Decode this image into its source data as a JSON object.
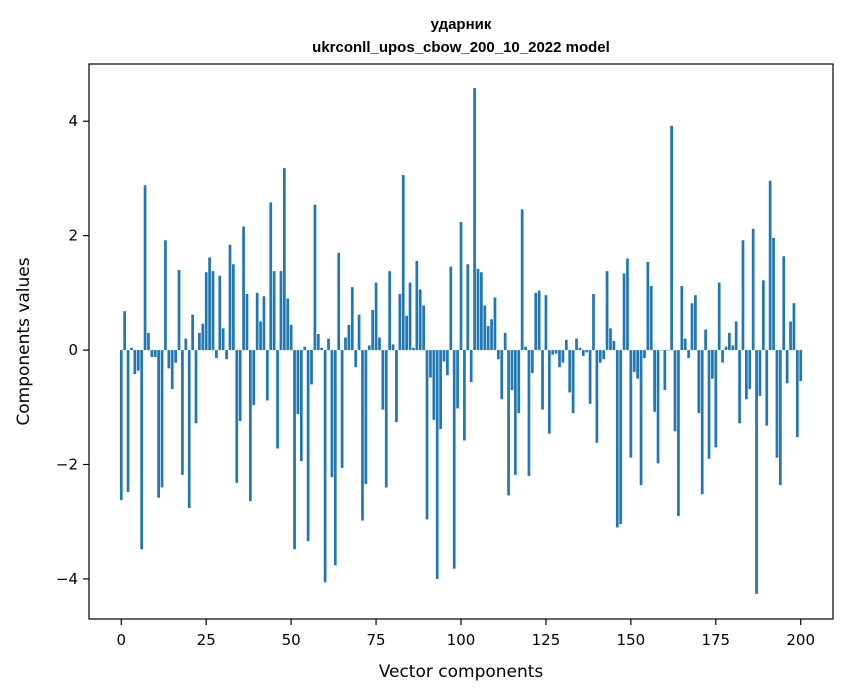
{
  "chart_data": {
    "type": "bar",
    "title": [
      "ударник",
      "ukrconll_upos_cbow_200_10_2022 model"
    ],
    "xlabel": "Vector components",
    "ylabel": "Components values",
    "xlim": [
      -9.5,
      209.5
    ],
    "ylim": [
      -4.7,
      5.0
    ],
    "xticks": [
      0,
      25,
      50,
      75,
      100,
      125,
      150,
      175,
      200
    ],
    "yticks": [
      -4,
      -2,
      0,
      2,
      4
    ],
    "grid": false,
    "color": "#1f77b4",
    "x_start": 0,
    "values": [
      -2.62,
      0.68,
      -2.48,
      0.04,
      -0.42,
      -0.36,
      -3.48,
      2.88,
      0.3,
      -0.12,
      -0.12,
      -2.58,
      -2.4,
      1.92,
      -0.32,
      -0.68,
      -0.22,
      1.4,
      -2.18,
      0.2,
      -2.76,
      0.62,
      -1.28,
      0.3,
      0.46,
      1.36,
      1.62,
      1.38,
      -0.14,
      1.3,
      0.38,
      -0.16,
      1.84,
      1.5,
      -2.32,
      -1.24,
      2.16,
      0.98,
      -2.64,
      -0.96,
      1.0,
      0.5,
      0.94,
      -0.88,
      2.58,
      1.38,
      -1.72,
      1.38,
      3.18,
      0.9,
      0.44,
      -3.48,
      -1.12,
      -1.94,
      0.06,
      -3.34,
      -0.6,
      2.54,
      0.28,
      0.04,
      -4.06,
      0.2,
      -2.22,
      -3.76,
      1.7,
      -2.06,
      0.22,
      0.44,
      1.1,
      -0.3,
      0.62,
      -2.98,
      -2.34,
      0.08,
      0.7,
      1.18,
      0.22,
      -1.04,
      -2.4,
      1.38,
      0.1,
      -1.26,
      0.98,
      3.06,
      0.6,
      1.18,
      0.04,
      1.56,
      1.06,
      0.78,
      -2.96,
      -0.48,
      -1.22,
      -4.0,
      -1.38,
      -0.2,
      -0.44,
      1.46,
      -3.82,
      -1.02,
      2.24,
      -1.58,
      1.5,
      -0.56,
      4.58,
      1.42,
      1.36,
      0.78,
      0.42,
      0.54,
      0.92,
      -0.16,
      -0.86,
      0.3,
      -2.54,
      -0.7,
      -2.18,
      -1.1,
      2.46,
      0.06,
      -2.2,
      -0.4,
      1.0,
      1.04,
      -1.04,
      0.96,
      -1.46,
      -0.08,
      -0.06,
      -0.3,
      -0.22,
      0.18,
      -0.74,
      -1.1,
      0.2,
      0.04,
      -0.1,
      -0.04,
      -0.94,
      0.98,
      -1.62,
      -0.22,
      -0.16,
      1.38,
      0.38,
      0.16,
      -3.1,
      -3.04,
      1.34,
      1.6,
      -1.88,
      -0.38,
      -0.5,
      -2.36,
      -0.14,
      1.54,
      1.12,
      -1.08,
      -1.98,
      0.0,
      -0.7,
      0.0,
      3.92,
      -1.42,
      -2.9,
      1.12,
      0.2,
      -0.14,
      0.82,
      0.96,
      -1.1,
      -2.52,
      0.36,
      -1.9,
      -0.5,
      -1.7,
      1.18,
      -0.22,
      0.06,
      0.3,
      0.08,
      0.5,
      -1.28,
      1.92,
      -0.86,
      -0.68,
      2.12,
      -4.26,
      -0.8,
      1.22,
      -1.32,
      2.96,
      1.96,
      -1.88,
      -2.36,
      1.64,
      -0.58,
      0.5,
      0.82,
      -1.52,
      -0.54
    ]
  }
}
